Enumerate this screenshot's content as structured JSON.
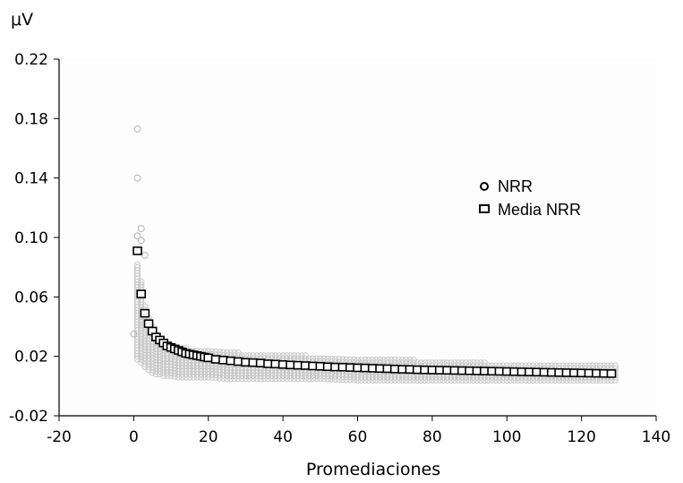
{
  "chart_data": {
    "type": "scatter",
    "title": "",
    "xlabel": "Promediaciones",
    "ylabel": "μV",
    "xlim": [
      -20,
      140
    ],
    "ylim": [
      -0.02,
      0.22
    ],
    "xticks": [
      -20,
      0,
      20,
      40,
      60,
      80,
      100,
      120,
      140
    ],
    "yticks": [
      -0.02,
      0.02,
      0.06,
      0.1,
      0.14,
      0.18,
      0.22
    ],
    "xtick_labels": [
      "-20",
      "0",
      "20",
      "40",
      "60",
      "80",
      "100",
      "120",
      "140"
    ],
    "ytick_labels": [
      "-0.02",
      "0.02",
      "0.06",
      "0.10",
      "0.14",
      "0.18",
      "0.22"
    ],
    "grid": false,
    "legend_position": "right-center",
    "series": [
      {
        "name": "NRR",
        "marker": "circle",
        "color": "#c8c8c8",
        "note": "individual NRR values, band around the mean",
        "spread_upper": [
          0.082,
          0.07,
          0.055,
          0.046,
          0.04,
          0.036,
          0.032,
          0.03,
          0.028,
          0.026,
          0.025,
          0.024,
          0.023,
          0.022,
          0.021,
          0.02,
          0.019,
          0.018,
          0.017,
          0.016,
          0.015,
          0.015,
          0.014
        ],
        "spread_lower": [
          0.018,
          0.016,
          0.013,
          0.011,
          0.009,
          0.008,
          0.008,
          0.007,
          0.007,
          0.006,
          0.006,
          0.006,
          0.005,
          0.005,
          0.005,
          0.005,
          0.004,
          0.004,
          0.004,
          0.004,
          0.004,
          0.004,
          0.004
        ],
        "spread_x": [
          1,
          2,
          3,
          4,
          5,
          6,
          7,
          8,
          10,
          12,
          15,
          20,
          25,
          30,
          40,
          50,
          60,
          70,
          80,
          90,
          100,
          115,
          129
        ],
        "outliers": [
          {
            "x": 1,
            "y": 0.173
          },
          {
            "x": 1,
            "y": 0.14
          },
          {
            "x": 2,
            "y": 0.106
          },
          {
            "x": 1,
            "y": 0.101
          },
          {
            "x": 2,
            "y": 0.098
          },
          {
            "x": 3,
            "y": 0.088
          },
          {
            "x": 0,
            "y": 0.035
          }
        ]
      },
      {
        "name": "Media NRR",
        "marker": "square",
        "color": "#000000",
        "x": [
          1,
          2,
          3,
          4,
          5,
          6,
          7,
          8,
          9,
          10,
          11,
          12,
          13,
          14,
          15,
          16,
          17,
          18,
          19,
          20,
          22,
          24,
          26,
          28,
          30,
          32,
          34,
          36,
          38,
          40,
          42,
          44,
          46,
          48,
          50,
          52,
          54,
          56,
          58,
          60,
          62,
          64,
          66,
          68,
          70,
          72,
          74,
          76,
          78,
          80,
          82,
          84,
          86,
          88,
          90,
          92,
          94,
          96,
          98,
          100,
          102,
          104,
          106,
          108,
          110,
          112,
          114,
          116,
          118,
          120,
          122,
          124,
          126,
          128
        ],
        "y": [
          0.091,
          0.062,
          0.049,
          0.042,
          0.037,
          0.033,
          0.031,
          0.029,
          0.027,
          0.026,
          0.025,
          0.024,
          0.023,
          0.022,
          0.0215,
          0.021,
          0.0205,
          0.02,
          0.0195,
          0.019,
          0.018,
          0.0175,
          0.017,
          0.0165,
          0.016,
          0.0158,
          0.0155,
          0.015,
          0.0148,
          0.0145,
          0.0142,
          0.014,
          0.0138,
          0.0135,
          0.0133,
          0.013,
          0.0128,
          0.0127,
          0.0125,
          0.0123,
          0.0122,
          0.012,
          0.0118,
          0.0117,
          0.0115,
          0.0113,
          0.0112,
          0.011,
          0.0109,
          0.0108,
          0.0107,
          0.0106,
          0.0105,
          0.0104,
          0.0103,
          0.0102,
          0.0101,
          0.01,
          0.0099,
          0.0098,
          0.0097,
          0.0096,
          0.0095,
          0.0094,
          0.0093,
          0.0092,
          0.0091,
          0.009,
          0.0089,
          0.0088,
          0.0087,
          0.0086,
          0.0085,
          0.0084
        ]
      }
    ]
  }
}
